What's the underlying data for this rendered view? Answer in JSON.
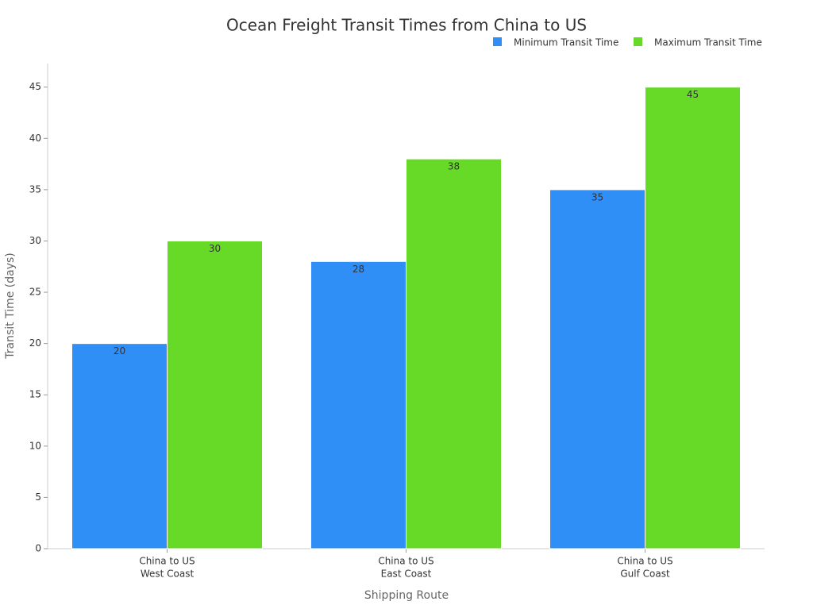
{
  "chart_data": {
    "type": "bar",
    "title": "Ocean Freight Transit Times from China to US",
    "x_label": "Shipping Route",
    "y_label": "Transit Time (days)",
    "categories": [
      [
        "China to US",
        "West Coast"
      ],
      [
        "China to US",
        "East Coast"
      ],
      [
        "China to US",
        "Gulf Coast"
      ]
    ],
    "series": [
      {
        "name": "Minimum Transit Time",
        "color": "#2f8ff7",
        "values": [
          20,
          28,
          35
        ]
      },
      {
        "name": "Maximum Transit Time",
        "color": "#66da26",
        "values": [
          30,
          38,
          45
        ]
      }
    ],
    "ylim": [
      0,
      47.3
    ],
    "yticks": [
      0,
      5,
      10,
      15,
      20,
      25,
      30,
      35,
      40,
      45
    ],
    "grid": false,
    "legend": "top-right"
  }
}
